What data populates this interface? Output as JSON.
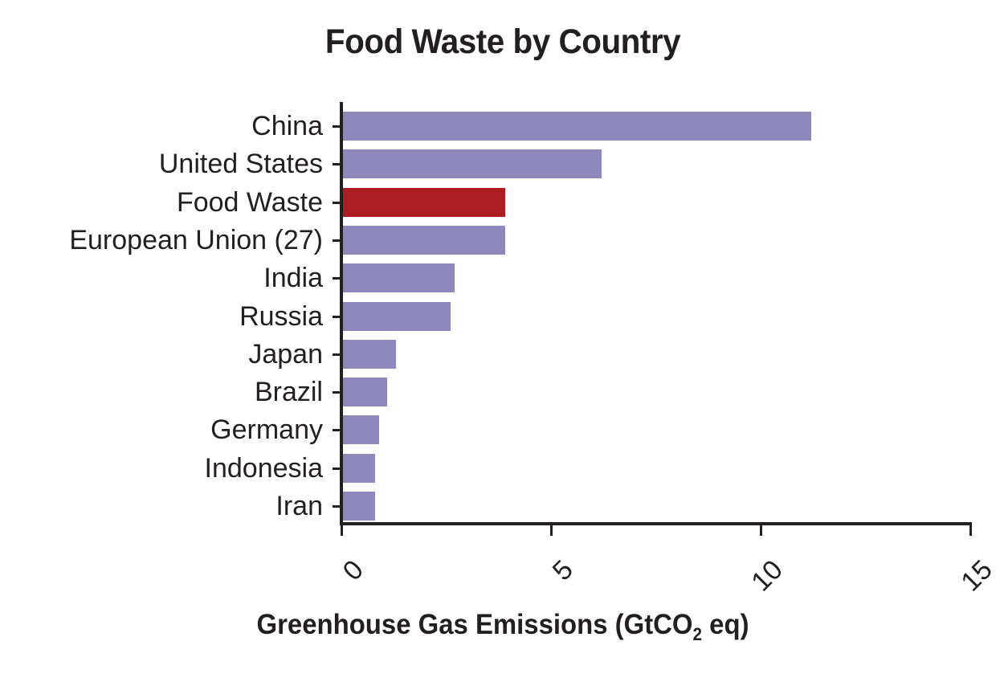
{
  "chart_data": {
    "type": "bar",
    "orientation": "horizontal",
    "title": "Food Waste by Country",
    "xlabel": "Greenhouse Gas Emissions (GtCO2 eq)",
    "xlabel_parts": {
      "main": "Greenhouse Gas Emissions (GtCO",
      "sub": "2",
      "end": " eq)"
    },
    "ylabel": "",
    "xlim": [
      0,
      15
    ],
    "xticks": [
      "0",
      "5",
      "10",
      "15"
    ],
    "grid": false,
    "legend": null,
    "categories": [
      "China",
      "United States",
      "Food Waste",
      "European Union (27)",
      "India",
      "Russia",
      "Japan",
      "Brazil",
      "Germany",
      "Indonesia",
      "Iran"
    ],
    "values": [
      11.2,
      6.2,
      3.9,
      3.9,
      2.7,
      2.6,
      1.3,
      1.1,
      0.9,
      0.8,
      0.8
    ],
    "colors": {
      "default": "#8e89ba",
      "highlight": "#ac1c22"
    },
    "highlighted_category": "Food Waste"
  }
}
